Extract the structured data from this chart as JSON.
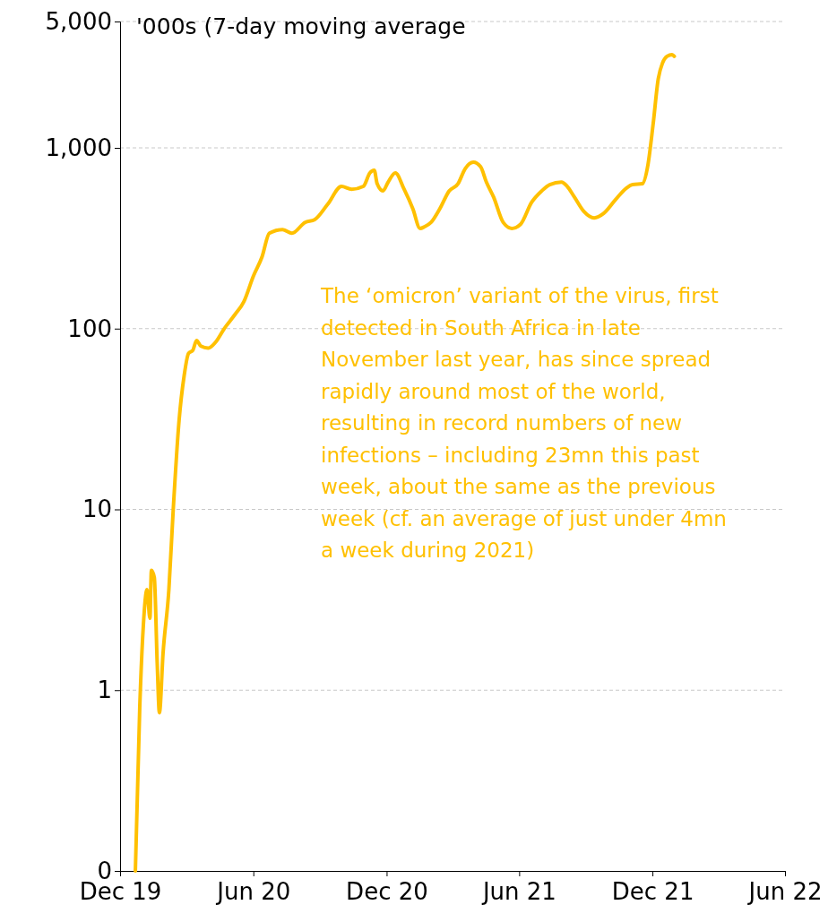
{
  "chart_data": {
    "type": "line",
    "subtitle": "'000s (7-day moving average",
    "log": true,
    "grid": "y",
    "color": "#ffc000",
    "x": [
      "2019-12-22",
      "2019-12-28",
      "2020-01-02",
      "2020-01-07",
      "2020-01-11",
      "2020-01-13",
      "2020-01-17",
      "2020-01-21",
      "2020-01-24",
      "2020-01-29",
      "2020-02-06",
      "2020-02-12",
      "2020-02-20",
      "2020-02-27",
      "2020-03-04",
      "2020-03-10",
      "2020-03-15",
      "2020-03-21",
      "2020-03-31",
      "2020-04-10",
      "2020-04-22",
      "2020-05-07",
      "2020-05-19",
      "2020-06-01",
      "2020-06-13",
      "2020-06-23",
      "2020-07-11",
      "2020-07-24",
      "2020-08-11",
      "2020-08-24",
      "2020-09-11",
      "2020-09-30",
      "2020-10-14",
      "2020-10-30",
      "2020-11-08",
      "2020-11-14",
      "2020-11-18",
      "2020-11-26",
      "2020-12-03",
      "2020-12-13",
      "2020-12-25",
      "2021-01-06",
      "2021-01-16",
      "2021-01-22",
      "2021-01-31",
      "2021-02-12",
      "2021-02-25",
      "2021-03-09",
      "2021-03-19",
      "2021-03-30",
      "2021-04-09",
      "2021-04-17",
      "2021-04-27",
      "2021-05-10",
      "2021-05-22",
      "2021-06-03",
      "2021-06-18",
      "2021-07-02",
      "2021-07-13",
      "2021-07-29",
      "2021-08-06",
      "2021-08-16",
      "2021-08-29",
      "2021-09-12",
      "2021-09-25",
      "2021-10-11",
      "2021-10-26",
      "2021-11-04",
      "2021-11-17",
      "2021-11-25",
      "2021-12-02",
      "2021-12-09",
      "2021-12-15",
      "2021-12-21",
      "2021-12-28",
      "2021-12-31"
    ],
    "values": [
      0.1,
      0.8,
      2.3,
      3.6,
      2.5,
      4.6,
      4.2,
      1.4,
      0.75,
      1.6,
      3.6,
      10,
      31,
      55,
      73,
      76,
      86,
      80,
      78,
      84,
      100,
      120,
      141,
      195,
      250,
      337,
      353,
      337,
      387,
      400,
      487,
      612,
      590,
      612,
      726,
      751,
      633,
      578,
      646,
      726,
      590,
      460,
      358,
      366,
      387,
      460,
      578,
      633,
      769,
      833,
      786,
      646,
      533,
      387,
      358,
      378,
      499,
      578,
      626,
      646,
      612,
      533,
      444,
      410,
      434,
      515,
      598,
      626,
      633,
      814,
      1360,
      2410,
      2960,
      3210,
      3280,
      3210
    ],
    "xlim": [
      "2019-12-01",
      "2022-06-01"
    ],
    "xticks": [
      {
        "value": "2019-12-01",
        "label": "Dec 19"
      },
      {
        "value": "2020-06-01",
        "label": "Jun 20"
      },
      {
        "value": "2020-12-01",
        "label": "Dec 20"
      },
      {
        "value": "2021-06-01",
        "label": "Jun 21"
      },
      {
        "value": "2021-12-01",
        "label": "Dec 21"
      },
      {
        "value": "2022-06-01",
        "label": "Jun 22"
      }
    ],
    "ylim": [
      0.1,
      5000
    ],
    "yticks": [
      {
        "value": 0.1,
        "label": "0"
      },
      1,
      10,
      100,
      {
        "value": 1000,
        "label": "1,000"
      },
      {
        "value": 5000,
        "label": "5,000"
      }
    ],
    "annotations": [
      "The ‘omicron’ variant of the virus, first detected in South Africa in late November last year, has since spread rapidly around most of the world, resulting in record numbers of new infections – including 23mn this past week, about the same as the previous week (cf. an average of just under 4mn a week during 2021)"
    ]
  }
}
